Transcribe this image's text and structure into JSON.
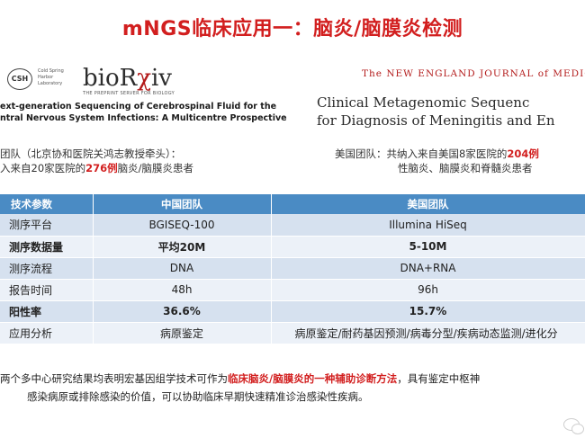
{
  "slide_title": "mNGS临床应用一：脑炎/脑膜炎检测",
  "left_source": {
    "csh_logo": "CSH",
    "csh_sub": "Cold Spring Harbor Laboratory",
    "brand_pre": "bioR",
    "brand_accent": "χ",
    "brand_post": "iv",
    "brand_sub": "THE PREPRINT SERVER FOR BIOLOGY",
    "paper_line1": "ext-generation Sequencing of Cerebrospinal Fluid for the",
    "paper_line2": "ntral Nervous System Infections: A Multicentre Prospective"
  },
  "right_source": {
    "journal": "The NEW ENGLAND JOURNAL of MEDICI",
    "paper_line1": "Clinical Metagenomic Sequenc",
    "paper_line2": "for Diagnosis of Meningitis and En"
  },
  "team_left": {
    "line1": "团队（北京协和医院关鸿志教授牵头）：",
    "line2_pre": "入来自20家医院的",
    "line2_hl": "276例",
    "line2_post": "脑炎/脑膜炎患者"
  },
  "team_right": {
    "line1_pre": "美国团队：共纳入来自美国8家医院的",
    "line1_hl": "204例",
    "line2": "性脑炎、脑膜炎和脊髓炎患者"
  },
  "table": {
    "headers": [
      "技术参数",
      "中国团队",
      "美国团队"
    ],
    "rows": [
      {
        "param": "测序平台",
        "cn": "BGISEQ-100",
        "us": "Illumina HiSeq"
      },
      {
        "param": "测序数据量",
        "cn": "平均20M",
        "us": "5-10M"
      },
      {
        "param": "测序流程",
        "cn": "DNA",
        "us": "DNA+RNA"
      },
      {
        "param": "报告时间",
        "cn": "48h",
        "us": "96h"
      },
      {
        "param": "阳性率",
        "cn": "36.6%",
        "us": "15.7%"
      },
      {
        "param": "应用分析",
        "cn": "病原鉴定",
        "us": "病原鉴定/耐药基因预测/病毒分型/疾病动态监测/进化分"
      }
    ]
  },
  "summary": {
    "line1_pre": "两个多中心研究结果均表明宏基因组学技术可作为",
    "line1_hl": "临床脑炎/脑膜炎的一种辅助诊断方法",
    "line1_post": "，具有鉴定中枢神",
    "line2": "感染病原或排除感染的价值，可以协助临床早期快速精准诊治感染性疾病。"
  },
  "colors": {
    "title": "#d21f1f",
    "highlight": "#d21f1f",
    "table_header": "#4a8bc4",
    "row_dark": "#d6e1ef",
    "row_light": "#ecf1f8"
  }
}
